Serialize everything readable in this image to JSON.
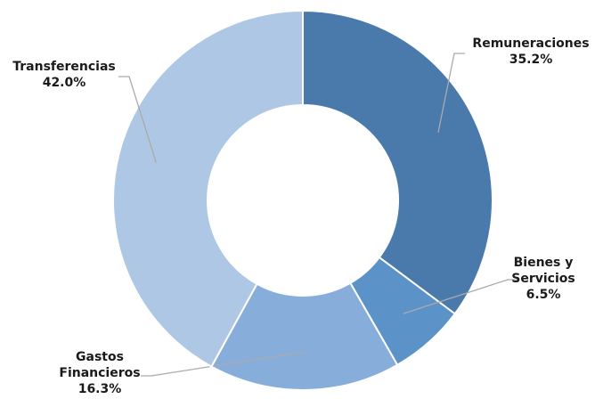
{
  "chart_data": {
    "type": "donut",
    "categories": [
      "Remuneraciones",
      "Bienes y Servicios",
      "Gastos Financieros",
      "Transferencias"
    ],
    "values": [
      35.2,
      6.5,
      16.3,
      42.0
    ],
    "value_labels": [
      "35.2%",
      "6.5%",
      "16.3%",
      "42.0%"
    ],
    "colors": [
      "#4a7aab",
      "#5b93c9",
      "#87aedb",
      "#aec7e4"
    ]
  }
}
